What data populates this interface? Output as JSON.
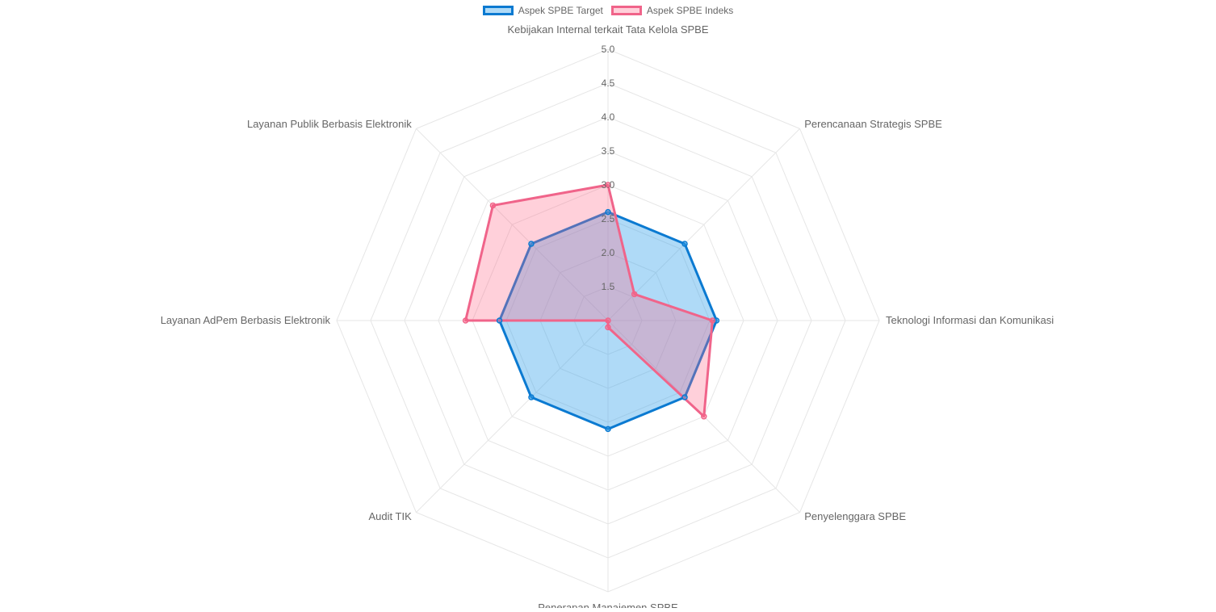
{
  "chart_data": {
    "type": "radar",
    "labels": [
      "Kebijakan Internal terkait Tata Kelola SPBE",
      "Perencanaan Strategis SPBE",
      "Teknologi Informasi dan Komunikasi",
      "Penyelenggara SPBE",
      "Penerapan Manajemen SPBE",
      "Audit TIK",
      "Layanan AdPem Berbasis Elektronik",
      "Layanan Publik Berbasis Elektronik"
    ],
    "r_min": 1.0,
    "r_max": 5.0,
    "tick_labels": [
      "1.5",
      "2.0",
      "2.5",
      "3.0",
      "3.5",
      "4.0",
      "4.5",
      "5.0"
    ],
    "series": [
      {
        "name": "Aspek SPBE Target",
        "values": [
          2.6,
          2.6,
          2.6,
          2.6,
          2.6,
          2.6,
          2.6,
          2.6
        ],
        "border_color": "#0b7ad1",
        "fill_color": "rgba(54, 162, 235, 0.40)"
      },
      {
        "name": "Aspek SPBE Indeks",
        "values": [
          3.0,
          1.55,
          2.54,
          3.0,
          1.1,
          1.0,
          3.1,
          3.4
        ],
        "border_color": "#f0648a",
        "fill_color": "rgba(255, 99, 132, 0.30)"
      }
    ],
    "grid": true,
    "legend_position": "top"
  }
}
